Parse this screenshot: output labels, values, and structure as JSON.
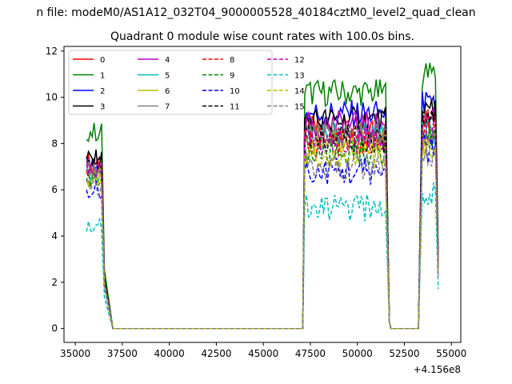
{
  "figure": {
    "suptitle": "n file: modeM0/AS1A12_032T04_9000005528_40184cztM0_level2_quad_clean",
    "title": "Quadrant 0 module wise count rates with 100.0s bins.",
    "offset_label": "+4.156e8"
  },
  "chart_data": {
    "type": "line",
    "title": "Quadrant 0 module wise count rates with 100.0s bins.",
    "xlabel": "",
    "ylabel": "",
    "x_offset": 415600000,
    "xlim": [
      34400,
      55500
    ],
    "ylim": [
      -0.6,
      12.2
    ],
    "x_ticks": [
      35000,
      37500,
      40000,
      42500,
      45000,
      47500,
      50000,
      52500,
      55000
    ],
    "x_tick_labels": [
      "35000",
      "37500",
      "40000",
      "42500",
      "45000",
      "47500",
      "50000",
      "52500",
      "55000"
    ],
    "y_ticks": [
      0,
      2,
      4,
      6,
      8,
      10,
      12
    ],
    "y_tick_labels": [
      "0",
      "2",
      "4",
      "6",
      "8",
      "10",
      "12"
    ],
    "grid": false,
    "legend_position": "upper-left",
    "legend_columns": 4,
    "segments": [
      {
        "on_start": 35600,
        "on_end": 36400,
        "drop_to": 37000
      },
      {
        "on_start": 47200,
        "on_end": 51500,
        "drop_to": 51700,
        "rise_from": 47100
      },
      {
        "on_start": 53450,
        "on_end": 54200,
        "rise_from": 53250
      }
    ],
    "series": [
      {
        "name": "0",
        "color": "#ff0000",
        "dash": "solid",
        "levels": [
          7.2,
          8.6,
          8.9
        ]
      },
      {
        "name": "1",
        "color": "#008000",
        "dash": "solid",
        "levels": [
          8.5,
          10.2,
          11.0
        ]
      },
      {
        "name": "2",
        "color": "#0000ff",
        "dash": "solid",
        "levels": [
          7.0,
          9.3,
          9.9
        ]
      },
      {
        "name": "3",
        "color": "#000000",
        "dash": "solid",
        "levels": [
          7.3,
          9.0,
          9.6
        ]
      },
      {
        "name": "4",
        "color": "#bf00bf",
        "dash": "solid",
        "levels": [
          7.0,
          8.8,
          9.2
        ]
      },
      {
        "name": "5",
        "color": "#00bfbf",
        "dash": "solid",
        "levels": [
          6.6,
          8.3,
          8.4
        ]
      },
      {
        "name": "6",
        "color": "#bfbf00",
        "dash": "solid",
        "levels": [
          6.5,
          8.1,
          8.0
        ]
      },
      {
        "name": "7",
        "color": "#808080",
        "dash": "solid",
        "levels": [
          6.8,
          8.4,
          8.3
        ]
      },
      {
        "name": "8",
        "color": "#ff0000",
        "dash": "dashed",
        "levels": [
          7.0,
          8.0,
          8.8
        ]
      },
      {
        "name": "9",
        "color": "#008000",
        "dash": "dashed",
        "levels": [
          6.5,
          7.6,
          8.1
        ]
      },
      {
        "name": "10",
        "color": "#0000ff",
        "dash": "dashed",
        "levels": [
          6.0,
          6.8,
          7.8
        ]
      },
      {
        "name": "11",
        "color": "#000000",
        "dash": "dashed",
        "levels": [
          7.1,
          8.2,
          9.0
        ]
      },
      {
        "name": "12",
        "color": "#bf00bf",
        "dash": "dashed",
        "levels": [
          6.7,
          8.1,
          8.5
        ]
      },
      {
        "name": "13",
        "color": "#00bfbf",
        "dash": "dashed",
        "levels": [
          4.5,
          5.2,
          5.7
        ]
      },
      {
        "name": "14",
        "color": "#bfbf00",
        "dash": "dashed",
        "levels": [
          6.4,
          7.5,
          8.0
        ]
      },
      {
        "name": "15",
        "color": "#808080",
        "dash": "dashed",
        "levels": [
          6.2,
          7.0,
          7.6
        ]
      }
    ]
  }
}
